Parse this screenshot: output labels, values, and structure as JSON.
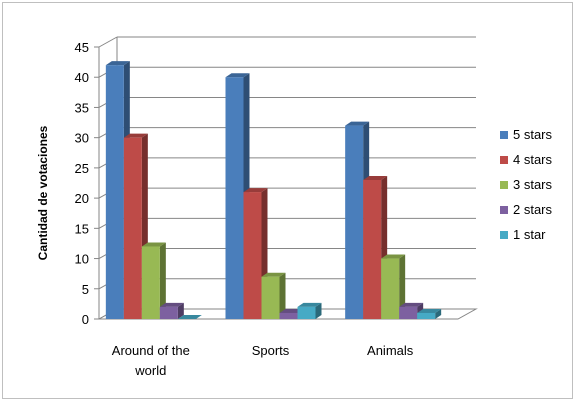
{
  "chart_data": {
    "type": "bar",
    "title": "",
    "xlabel": "",
    "ylabel": "Cantidad de votaciones",
    "categories": [
      "Around of the world",
      "Sports",
      "Animals"
    ],
    "category_lines": [
      [
        "Around of the",
        "world"
      ],
      [
        "Sports"
      ],
      [
        "Animals"
      ]
    ],
    "ylim": [
      0,
      45
    ],
    "yticks": [
      "0",
      "5",
      "10",
      "15",
      "20",
      "25",
      "30",
      "35",
      "40",
      "45"
    ],
    "grid": true,
    "legend_position": "right",
    "three_d": true,
    "series": [
      {
        "name": "5 stars",
        "values": [
          42,
          40,
          32
        ],
        "color": "#4a7ebb"
      },
      {
        "name": "4 stars",
        "values": [
          30,
          21,
          23
        ],
        "color": "#be4b48"
      },
      {
        "name": "3 stars",
        "values": [
          12,
          7,
          10
        ],
        "color": "#98b954"
      },
      {
        "name": "2 stars",
        "values": [
          2,
          1,
          2
        ],
        "color": "#7d60a0"
      },
      {
        "name": "1 star",
        "values": [
          0,
          2,
          1
        ],
        "color": "#46aac5"
      }
    ]
  }
}
